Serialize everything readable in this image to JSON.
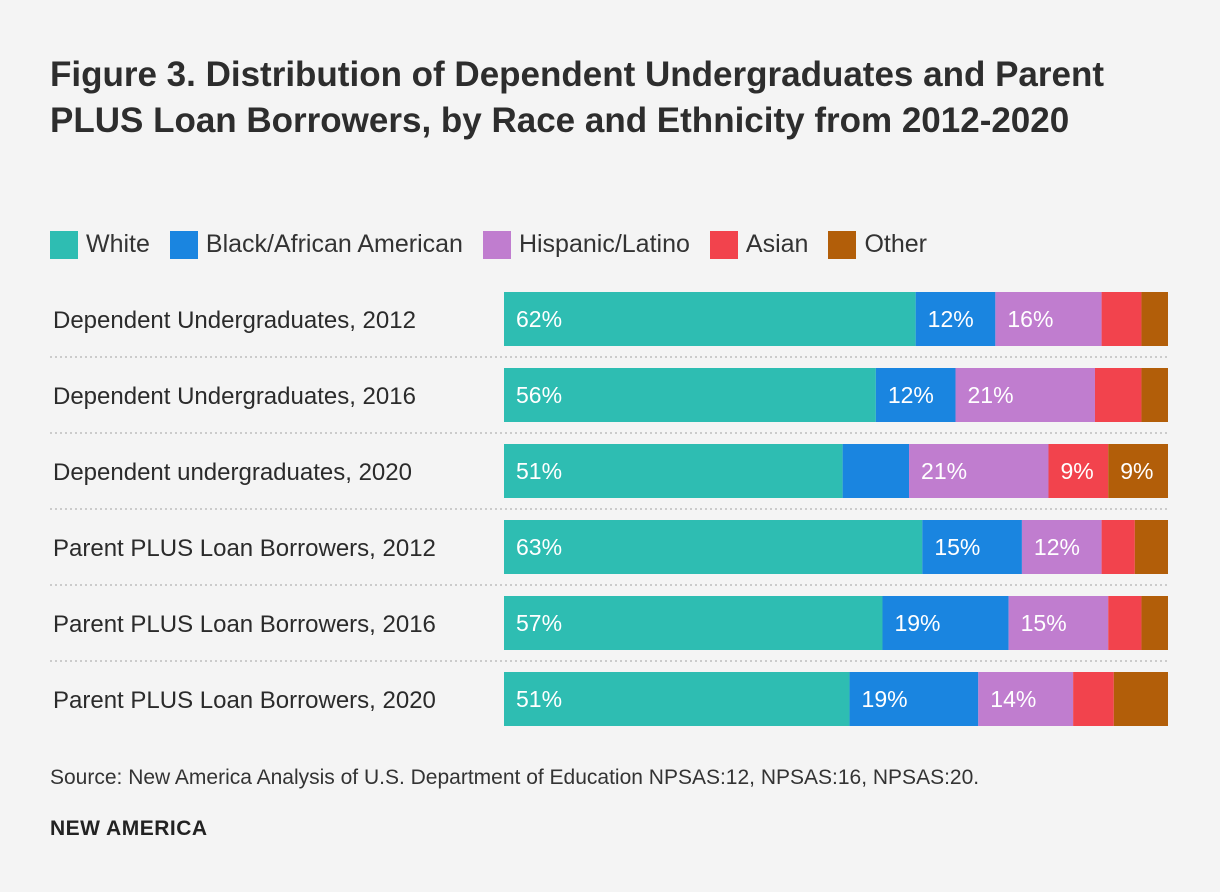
{
  "chart_data": {
    "type": "bar",
    "orientation": "horizontal",
    "stacked": true,
    "title": "Figure 3. Distribution of Dependent Undergraduates and Parent PLUS Loan Borrowers, by Race and Ethnicity from 2012-2020",
    "categories": [
      "Dependent Undergraduates, 2012",
      "Dependent Undergraduates, 2016",
      "Dependent undergraduates, 2020",
      "Parent PLUS Loan Borrowers, 2012",
      "Parent PLUS Loan Borrowers, 2016",
      "Parent PLUS Loan Borrowers, 2020"
    ],
    "series": [
      {
        "name": "White",
        "color": "#2ebdb2",
        "values": [
          62,
          56,
          51,
          63,
          57,
          51
        ],
        "labels": [
          "62%",
          "56%",
          "51%",
          "63%",
          "57%",
          "51%"
        ]
      },
      {
        "name": "Black/African American",
        "color": "#1a85e0",
        "values": [
          12,
          12,
          10,
          15,
          19,
          19
        ],
        "labels": [
          "12%",
          "12%",
          "",
          "15%",
          "19%",
          "19%"
        ]
      },
      {
        "name": "Hispanic/Latino",
        "color": "#c07dcf",
        "values": [
          16,
          21,
          21,
          12,
          15,
          14
        ],
        "labels": [
          "16%",
          "21%",
          "21%",
          "12%",
          "15%",
          "14%"
        ]
      },
      {
        "name": "Asian",
        "color": "#f2434d",
        "values": [
          6,
          7,
          9,
          5,
          5,
          6
        ],
        "labels": [
          "",
          "",
          "9%",
          "",
          "",
          ""
        ]
      },
      {
        "name": "Other",
        "color": "#b25e09",
        "values": [
          4,
          4,
          9,
          5,
          4,
          8
        ],
        "labels": [
          "",
          "",
          "9%",
          "",
          "",
          ""
        ]
      }
    ],
    "xlim": [
      0,
      100
    ],
    "legend_position": "top-left"
  },
  "source": "Source: New America Analysis of U.S. Department of Education NPSAS:12, NPSAS:16, NPSAS:20.",
  "brand": "NEW AMERICA"
}
